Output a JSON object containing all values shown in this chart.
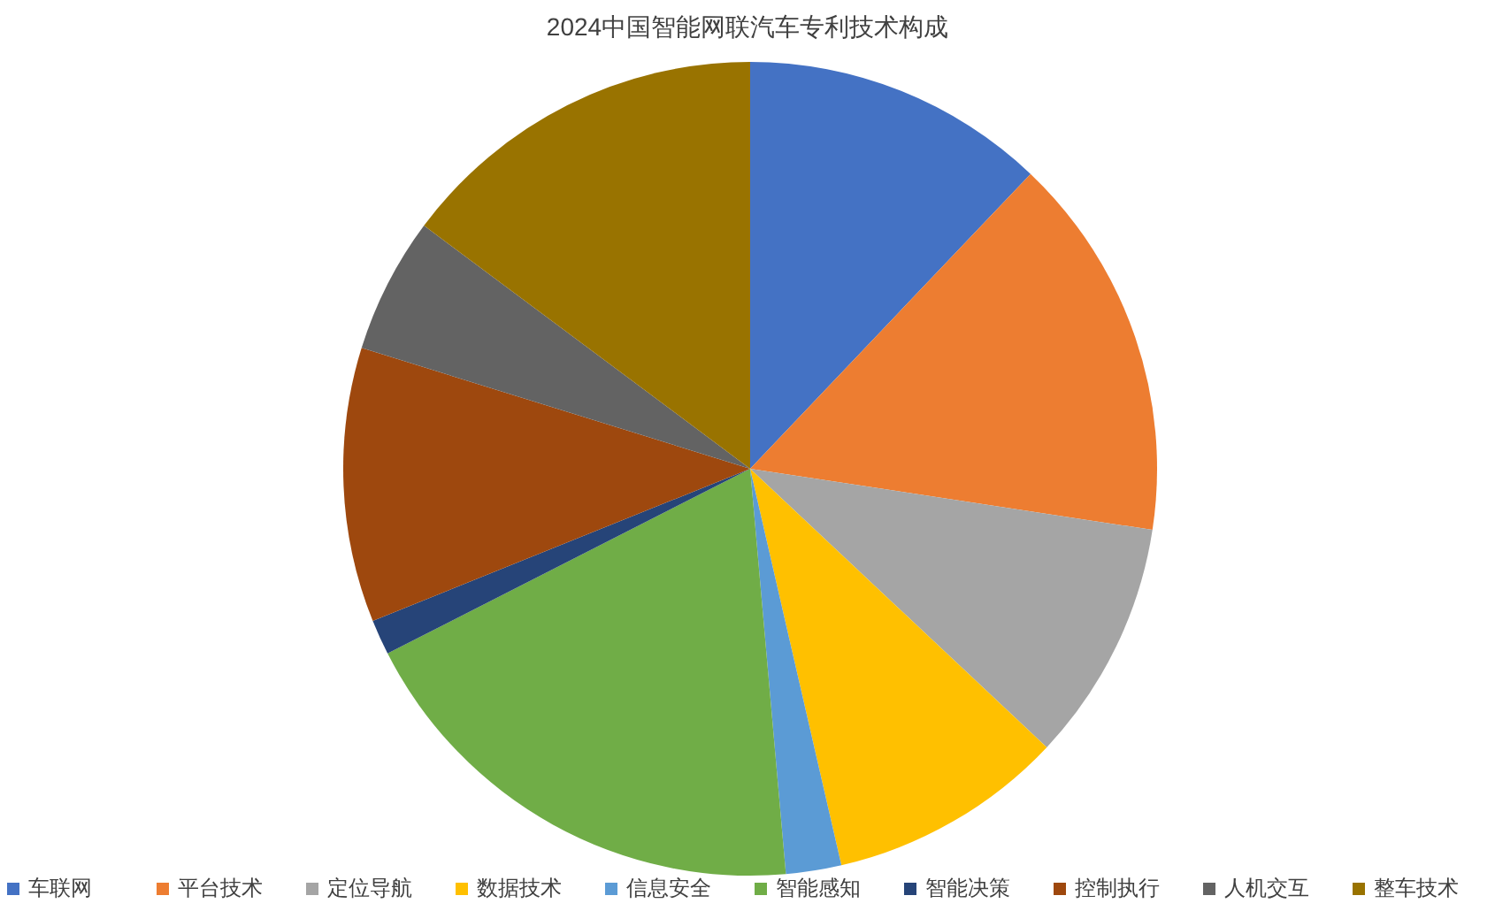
{
  "chart_data": {
    "type": "pie",
    "title": "2024中国智能网联汽车专利技术构成",
    "categories": [
      "车联网",
      "平台技术",
      "定位导航",
      "数据技术",
      "信息安全",
      "智能感知",
      "智能决策",
      "控制执行",
      "人机交互",
      "整车技术"
    ],
    "values": [
      12.1,
      15.3,
      9.6,
      9.4,
      2.2,
      18.9,
      1.4,
      10.9,
      5.4,
      14.8
    ],
    "colors": [
      "#4472c4",
      "#ed7d31",
      "#a5a5a5",
      "#ffc000",
      "#5b9bd5",
      "#70ad47",
      "#264478",
      "#9e480e",
      "#636363",
      "#997300"
    ],
    "legend": "bottom"
  }
}
